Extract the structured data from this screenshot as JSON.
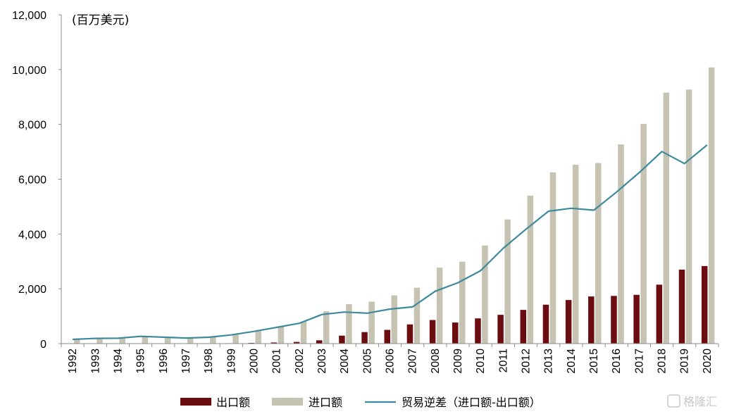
{
  "chart_data": {
    "type": "bar",
    "unit_label": "(百万美元)",
    "categories": [
      "1992",
      "1993",
      "1994",
      "1995",
      "1996",
      "1997",
      "1998",
      "1999",
      "2000",
      "2001",
      "2002",
      "2003",
      "2004",
      "2005",
      "2006",
      "2007",
      "2008",
      "2009",
      "2010",
      "2011",
      "2012",
      "2013",
      "2014",
      "2015",
      "2016",
      "2017",
      "2018",
      "2019",
      "2020"
    ],
    "series": [
      {
        "name": "出口额",
        "kind": "bar",
        "color": "#6b0d10",
        "values": [
          5,
          5,
          5,
          6,
          7,
          8,
          10,
          15,
          25,
          40,
          60,
          120,
          290,
          420,
          500,
          700,
          860,
          770,
          920,
          1050,
          1230,
          1420,
          1590,
          1720,
          1740,
          1780,
          2150,
          2700,
          2830
        ]
      },
      {
        "name": "进口额",
        "kind": "bar",
        "color": "#c6c3b3",
        "values": [
          160,
          195,
          200,
          270,
          240,
          210,
          240,
          330,
          470,
          630,
          800,
          1180,
          1440,
          1530,
          1760,
          2040,
          2770,
          2990,
          3580,
          4530,
          5400,
          6250,
          6530,
          6590,
          7270,
          8020,
          9160,
          9270,
          10080
        ]
      },
      {
        "name": "贸易逆差（进口额-出口额）",
        "kind": "line",
        "color": "#3d8a9c",
        "values": [
          155,
          190,
          195,
          264,
          233,
          202,
          230,
          315,
          445,
          590,
          740,
          1060,
          1150,
          1110,
          1260,
          1340,
          1910,
          2220,
          2660,
          3480,
          4170,
          4830,
          4940,
          4870,
          5530,
          6240,
          7010,
          6570,
          7250
        ]
      }
    ],
    "y_ticks": [
      "0",
      "2,000",
      "4,000",
      "6,000",
      "8,000",
      "10,000",
      "12,000"
    ],
    "ylim": [
      0,
      12000
    ],
    "grid": false,
    "legend_position": "bottom"
  },
  "watermark": "格隆汇"
}
